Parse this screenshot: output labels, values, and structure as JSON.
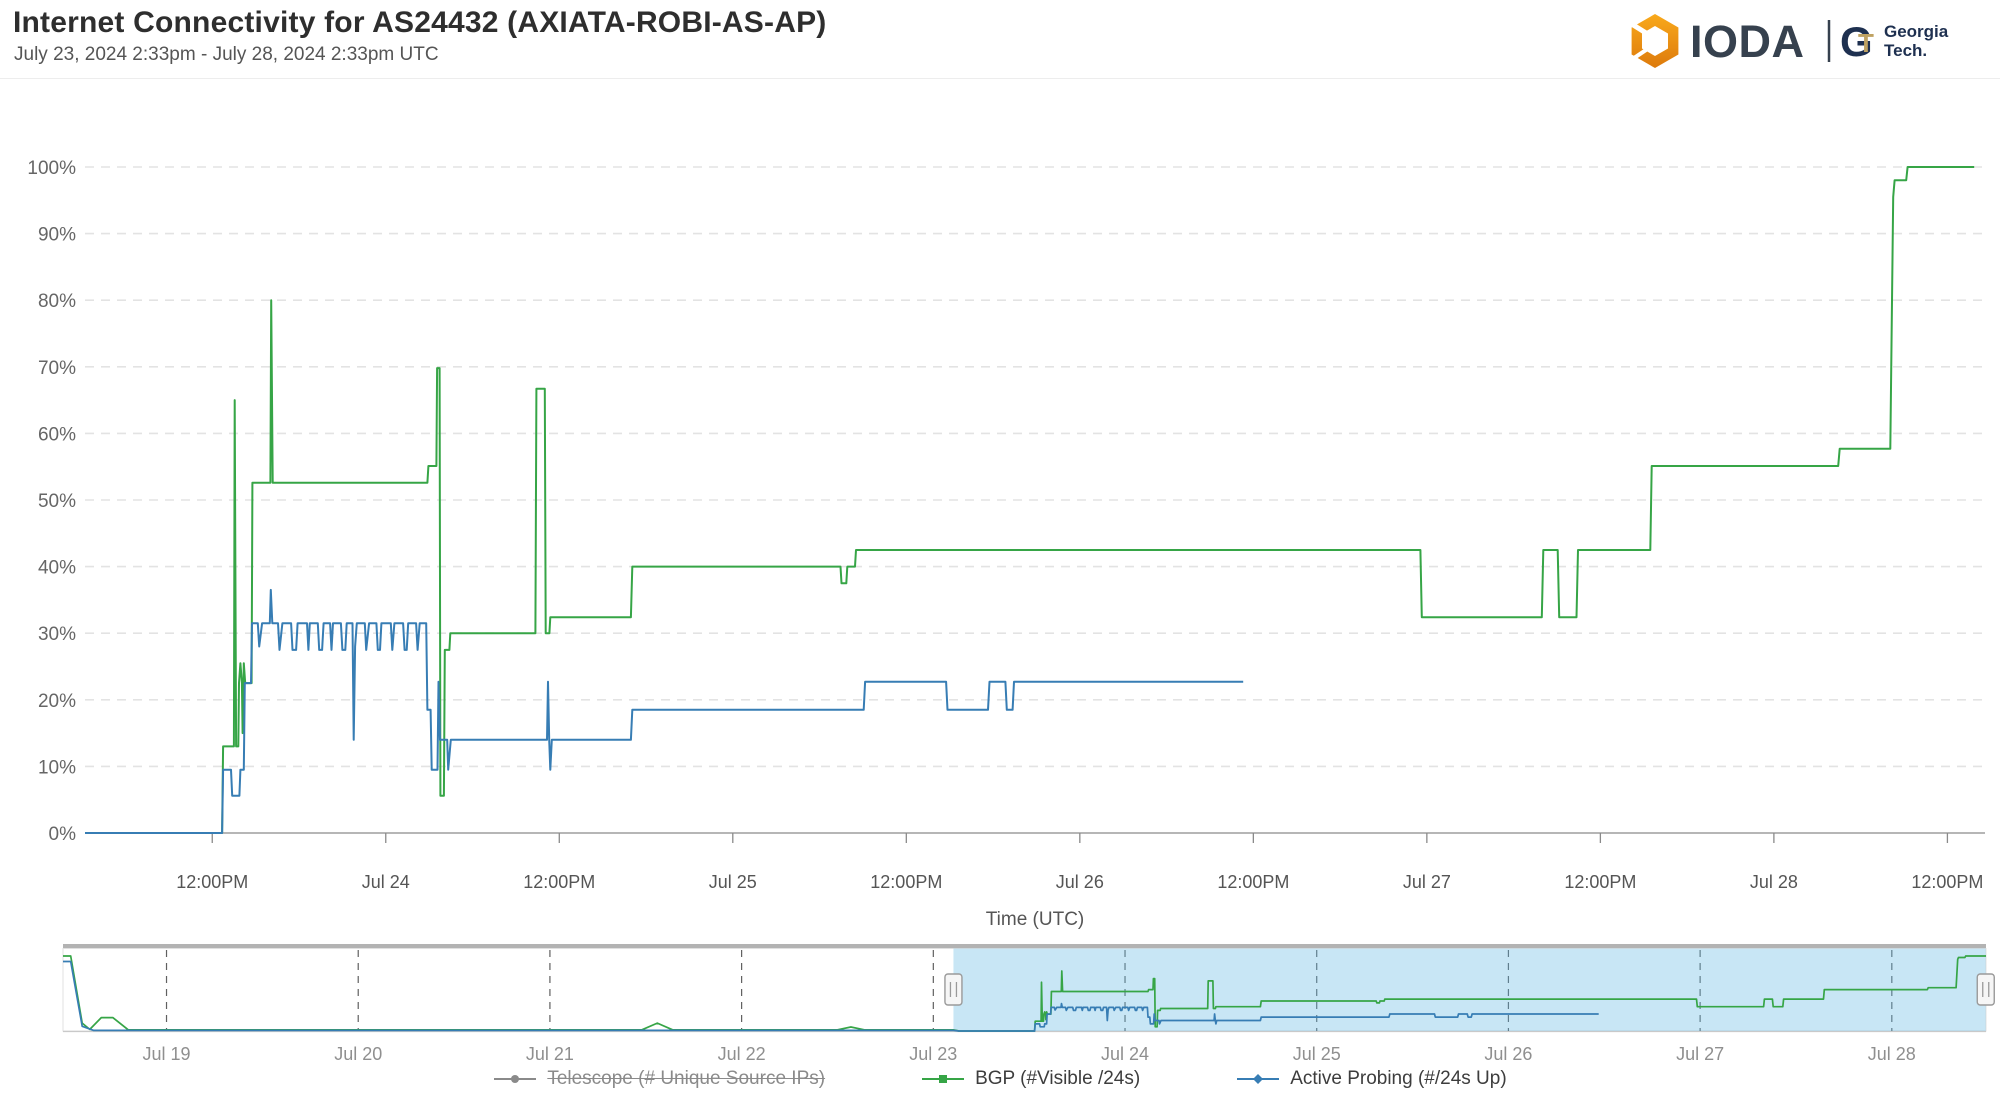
{
  "header": {
    "title": "Internet Connectivity for AS24432 (AXIATA-ROBI-AS-AP)",
    "subtitle": "July 23, 2024 2:33pm - July 28, 2024 2:33pm UTC"
  },
  "logo": {
    "ioda_text": "IODA",
    "gt_g": "G",
    "gt_t": "T",
    "georgia": "Georgia",
    "tech": "Tech."
  },
  "legend": [
    {
      "label": "Telescope (# Unique Source IPs)",
      "color": "#8a8a8a",
      "disabled": true
    },
    {
      "label": "BGP (#Visible /24s)",
      "color": "#36A546",
      "disabled": false
    },
    {
      "label": "Active Probing (#/24s Up)",
      "color": "#377DB4",
      "disabled": false
    }
  ],
  "chart_data": {
    "type": "line",
    "title": "Internet Connectivity for AS24432 (AXIATA-ROBI-AS-AP)",
    "x_unit": "hours since July 23, 2024 00:00 UTC",
    "ylim": [
      0,
      100
    ],
    "grid": "dashed-horizontal",
    "x_axis": {
      "label": "Time (UTC)",
      "ticks": [
        {
          "t": 12,
          "label": "12:00PM"
        },
        {
          "t": 24,
          "label": "Jul 24"
        },
        {
          "t": 36,
          "label": "12:00PM"
        },
        {
          "t": 48,
          "label": "Jul 25"
        },
        {
          "t": 60,
          "label": "12:00PM"
        },
        {
          "t": 72,
          "label": "Jul 26"
        },
        {
          "t": 84,
          "label": "12:00PM"
        },
        {
          "t": 96,
          "label": "Jul 27"
        },
        {
          "t": 108,
          "label": "12:00PM"
        },
        {
          "t": 120,
          "label": "Jul 28"
        },
        {
          "t": 132,
          "label": "12:00PM"
        }
      ]
    },
    "y_axis": {
      "tick_labels": [
        "0%",
        "10%",
        "20%",
        "30%",
        "40%",
        "50%",
        "60%",
        "70%",
        "80%",
        "90%",
        "100%"
      ]
    },
    "series": [
      {
        "name": "BGP (#Visible /24s)",
        "color": "#36A546",
        "points": [
          [
            3.2,
            0
          ],
          [
            12.68,
            0
          ],
          [
            12.75,
            13
          ],
          [
            13.5,
            13
          ],
          [
            13.55,
            65
          ],
          [
            13.65,
            13
          ],
          [
            13.8,
            13
          ],
          [
            13.85,
            22.5
          ],
          [
            13.95,
            25.5
          ],
          [
            14.05,
            22.5
          ],
          [
            14.1,
            15
          ],
          [
            14.18,
            25.5
          ],
          [
            14.28,
            22.5
          ],
          [
            14.72,
            22.5
          ],
          [
            14.78,
            52.6
          ],
          [
            16.02,
            52.6
          ],
          [
            16.08,
            80
          ],
          [
            16.18,
            52.6
          ],
          [
            26.88,
            52.6
          ],
          [
            26.95,
            55.1
          ],
          [
            27.5,
            55.1
          ],
          [
            27.55,
            69.8
          ],
          [
            27.72,
            69.8
          ],
          [
            27.78,
            5.6
          ],
          [
            28.02,
            5.6
          ],
          [
            28.08,
            27.5
          ],
          [
            28.4,
            27.5
          ],
          [
            28.46,
            30
          ],
          [
            34.35,
            30
          ],
          [
            34.42,
            66.7
          ],
          [
            35.0,
            66.7
          ],
          [
            35.06,
            30
          ],
          [
            35.32,
            30
          ],
          [
            35.38,
            32.4
          ],
          [
            40.95,
            32.4
          ],
          [
            41.05,
            40
          ],
          [
            55.45,
            40
          ],
          [
            55.52,
            37.5
          ],
          [
            55.85,
            37.5
          ],
          [
            55.92,
            40
          ],
          [
            56.45,
            40
          ],
          [
            56.52,
            42.5
          ],
          [
            95.55,
            42.5
          ],
          [
            95.65,
            32.4
          ],
          [
            103.95,
            32.4
          ],
          [
            104.05,
            42.5
          ],
          [
            105.05,
            42.5
          ],
          [
            105.15,
            32.4
          ],
          [
            106.35,
            32.4
          ],
          [
            106.45,
            42.5
          ],
          [
            111.45,
            42.5
          ],
          [
            111.55,
            55.1
          ],
          [
            124.45,
            55.1
          ],
          [
            124.55,
            57.7
          ],
          [
            128.05,
            57.7
          ],
          [
            128.25,
            95.5
          ],
          [
            128.35,
            98
          ],
          [
            129.15,
            98
          ],
          [
            129.25,
            100
          ],
          [
            133.85,
            100
          ]
        ]
      },
      {
        "name": "Active Probing (#/24s Up)",
        "color": "#377DB4",
        "points": [
          [
            3.2,
            0
          ],
          [
            12.68,
            0
          ],
          [
            12.75,
            9.5
          ],
          [
            13.3,
            9.5
          ],
          [
            13.38,
            5.6
          ],
          [
            13.88,
            5.6
          ],
          [
            13.95,
            9.5
          ],
          [
            14.18,
            9.5
          ],
          [
            14.25,
            22.5
          ],
          [
            14.68,
            22.5
          ],
          [
            14.75,
            31.5
          ],
          [
            15.15,
            31.5
          ],
          [
            15.25,
            28
          ],
          [
            15.45,
            31.5
          ],
          [
            15.98,
            31.5
          ],
          [
            16.05,
            36.5
          ],
          [
            16.15,
            31.5
          ],
          [
            16.55,
            31.5
          ],
          [
            16.65,
            27.5
          ],
          [
            16.85,
            31.5
          ],
          [
            17.45,
            31.5
          ],
          [
            17.55,
            27.5
          ],
          [
            17.8,
            27.5
          ],
          [
            17.9,
            31.5
          ],
          [
            18.55,
            31.5
          ],
          [
            18.65,
            27.5
          ],
          [
            18.75,
            31.5
          ],
          [
            19.3,
            31.5
          ],
          [
            19.4,
            27.5
          ],
          [
            19.6,
            27.5
          ],
          [
            19.7,
            31.5
          ],
          [
            20.15,
            31.5
          ],
          [
            20.25,
            27.5
          ],
          [
            20.35,
            31.5
          ],
          [
            20.9,
            31.5
          ],
          [
            21.0,
            27.5
          ],
          [
            21.2,
            27.5
          ],
          [
            21.3,
            31.5
          ],
          [
            21.7,
            31.5
          ],
          [
            21.78,
            14
          ],
          [
            21.88,
            28
          ],
          [
            22.0,
            31.5
          ],
          [
            22.55,
            31.5
          ],
          [
            22.65,
            27.5
          ],
          [
            22.85,
            31.5
          ],
          [
            23.35,
            31.5
          ],
          [
            23.45,
            27.5
          ],
          [
            23.6,
            27.5
          ],
          [
            23.7,
            31.5
          ],
          [
            24.35,
            31.5
          ],
          [
            24.45,
            27.5
          ],
          [
            24.6,
            31.5
          ],
          [
            25.2,
            31.5
          ],
          [
            25.3,
            27.5
          ],
          [
            25.45,
            27.5
          ],
          [
            25.55,
            31.5
          ],
          [
            26.1,
            31.5
          ],
          [
            26.2,
            27.5
          ],
          [
            26.35,
            31.5
          ],
          [
            26.8,
            31.5
          ],
          [
            26.88,
            18.5
          ],
          [
            27.1,
            18.5
          ],
          [
            27.18,
            9.5
          ],
          [
            27.58,
            9.5
          ],
          [
            27.65,
            22.7
          ],
          [
            27.75,
            14
          ],
          [
            28.25,
            14
          ],
          [
            28.32,
            9.5
          ],
          [
            28.5,
            14
          ],
          [
            35.15,
            14
          ],
          [
            35.22,
            22.7
          ],
          [
            35.3,
            14
          ],
          [
            35.38,
            9.5
          ],
          [
            35.48,
            14
          ],
          [
            40.95,
            14
          ],
          [
            41.05,
            18.5
          ],
          [
            57.05,
            18.5
          ],
          [
            57.15,
            22.7
          ],
          [
            62.75,
            22.7
          ],
          [
            62.85,
            18.5
          ],
          [
            65.65,
            18.5
          ],
          [
            65.75,
            22.7
          ],
          [
            66.85,
            22.7
          ],
          [
            66.95,
            18.5
          ],
          [
            67.35,
            18.5
          ],
          [
            67.45,
            22.7
          ],
          [
            83.3,
            22.7
          ]
        ]
      },
      {
        "name": "Telescope (# Unique Source IPs)",
        "color": "#8a8a8a",
        "hidden": true,
        "points": []
      }
    ],
    "navigator": {
      "day_labels": [
        {
          "d": 19,
          "label": "Jul 19"
        },
        {
          "d": 20,
          "label": "Jul 20"
        },
        {
          "d": 21,
          "label": "Jul 21"
        },
        {
          "d": 22,
          "label": "Jul 22"
        },
        {
          "d": 23,
          "label": "Jul 23"
        },
        {
          "d": 24,
          "label": "Jul 24"
        },
        {
          "d": 25,
          "label": "Jul 25"
        },
        {
          "d": 26,
          "label": "Jul 26"
        },
        {
          "d": 27,
          "label": "Jul 27"
        },
        {
          "d": 28,
          "label": "Jul 28"
        }
      ],
      "selection": {
        "start_day": 23.105,
        "end_day": 28.49
      },
      "selection_color": "rgba(96,182,226,0.35)",
      "pre_series": {
        "bgp": [
          [
            18.46,
            0.95
          ],
          [
            18.5,
            0.95
          ],
          [
            18.56,
            0.1
          ],
          [
            18.6,
            0.02
          ],
          [
            18.66,
            0.17
          ],
          [
            18.72,
            0.17
          ],
          [
            18.8,
            0.015
          ],
          [
            21.48,
            0.015
          ],
          [
            21.56,
            0.1
          ],
          [
            21.64,
            0.015
          ],
          [
            22.5,
            0.015
          ],
          [
            22.57,
            0.05
          ],
          [
            22.64,
            0.015
          ],
          [
            23.105,
            0.015
          ]
        ],
        "active": [
          [
            18.46,
            0.88
          ],
          [
            18.5,
            0.88
          ],
          [
            18.56,
            0.06
          ],
          [
            18.62,
            0.008
          ],
          [
            23.105,
            0.008
          ]
        ]
      }
    }
  }
}
